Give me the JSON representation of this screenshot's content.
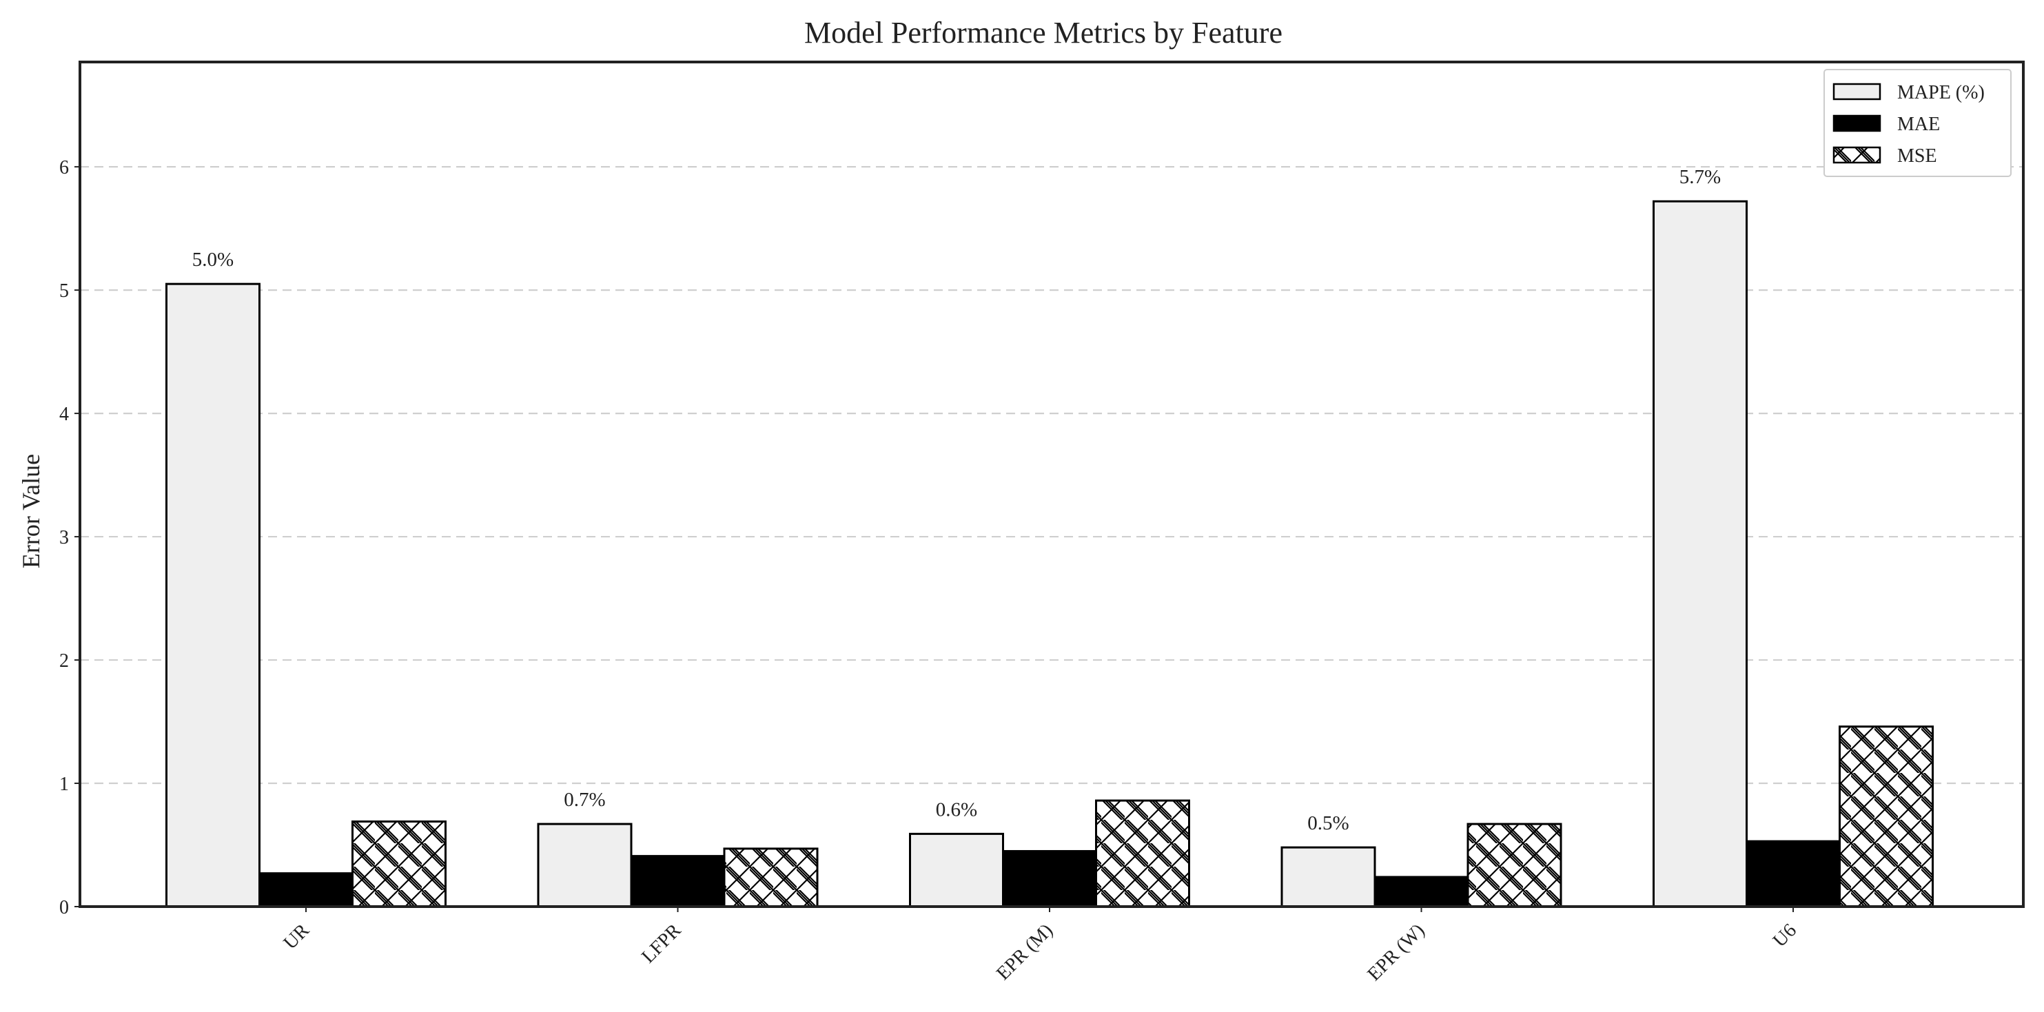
{
  "chart_data": {
    "type": "bar",
    "title": "Model Performance Metrics by Feature",
    "xlabel": "",
    "ylabel": "Error Value",
    "categories": [
      "UR",
      "LFPR",
      "EPR (M)",
      "EPR (W)",
      "U6"
    ],
    "series": [
      {
        "name": "MAPE (%)",
        "values": [
          5.05,
          0.67,
          0.59,
          0.48,
          5.72
        ],
        "fill": "#efefef",
        "pattern": "none"
      },
      {
        "name": "MAE",
        "values": [
          0.27,
          0.41,
          0.45,
          0.24,
          0.53
        ],
        "fill": "#000000",
        "pattern": "none"
      },
      {
        "name": "MSE",
        "values": [
          0.69,
          0.47,
          0.86,
          0.67,
          1.46
        ],
        "fill": "#ffffff",
        "pattern": "crosshatch"
      }
    ],
    "data_labels": [
      "5.0%",
      "0.7%",
      "0.6%",
      "0.5%",
      "5.7%"
    ],
    "ylim": [
      0,
      6.85
    ],
    "yticks": [
      0,
      1,
      2,
      3,
      4,
      5,
      6
    ],
    "grid": "horizontal dashed",
    "legend_position": "top-right",
    "colors": {
      "edge": "#000000",
      "frame": "#222222",
      "grid": "#cfcfcf"
    }
  }
}
